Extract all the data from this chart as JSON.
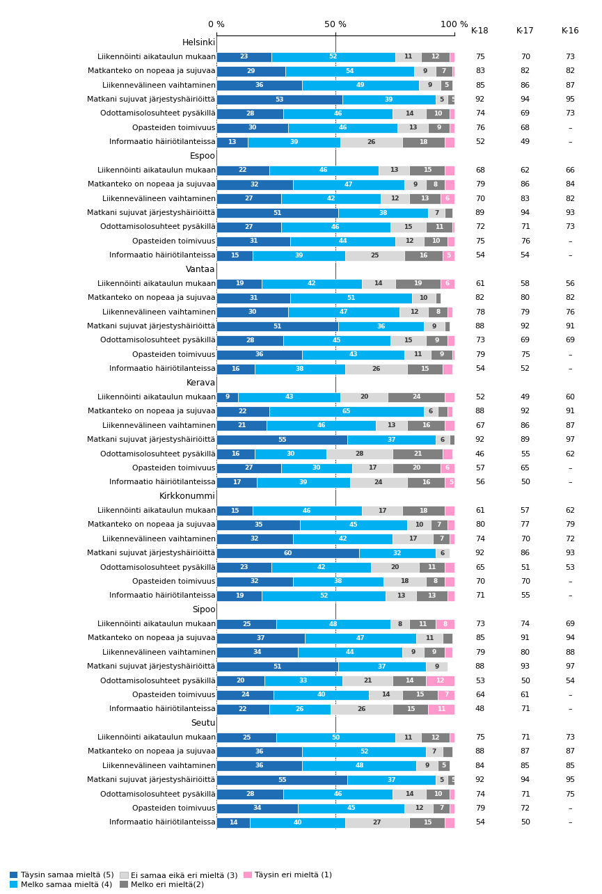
{
  "regions": [
    {
      "name": "Helsinki",
      "rows": [
        {
          "label": "Liikennöinti aikataulun mukaan",
          "v5": 23,
          "v4": 52,
          "v3": 11,
          "v2": 12,
          "v1": 3,
          "k18": 75,
          "k17": 70,
          "k16": 73
        },
        {
          "label": "Matkanteko on nopeaa ja sujuvaa",
          "v5": 29,
          "v4": 54,
          "v3": 9,
          "v2": 7,
          "v1": 2,
          "k18": 83,
          "k17": 82,
          "k16": 82
        },
        {
          "label": "Liikennevälineen vaihtaminen",
          "v5": 36,
          "v4": 49,
          "v3": 9,
          "v2": 5,
          "v1": 0,
          "k18": 85,
          "k17": 86,
          "k16": 87
        },
        {
          "label": "Matkani sujuvat järjestyshäiriöittä",
          "v5": 53,
          "v4": 39,
          "v3": 5,
          "v2": 5,
          "v1": 2,
          "k18": 92,
          "k17": 94,
          "k16": 95
        },
        {
          "label": "Odottamisolosuhteet pysäkillä",
          "v5": 28,
          "v4": 46,
          "v3": 14,
          "v2": 10,
          "v1": 2,
          "k18": 74,
          "k17": 69,
          "k16": 73
        },
        {
          "label": "Opasteiden toimivuus",
          "v5": 30,
          "v4": 46,
          "v3": 13,
          "v2": 9,
          "v1": 2,
          "k18": 76,
          "k17": 68,
          "k16": null
        },
        {
          "label": "Informaatio häiriötilanteissa",
          "v5": 13,
          "v4": 39,
          "v3": 26,
          "v2": 18,
          "v1": 4,
          "k18": 52,
          "k17": 49,
          "k16": null
        }
      ]
    },
    {
      "name": "Espoo",
      "rows": [
        {
          "label": "Liikennöinti aikataulun mukaan",
          "v5": 22,
          "v4": 46,
          "v3": 13,
          "v2": 15,
          "v1": 4,
          "k18": 68,
          "k17": 62,
          "k16": 66
        },
        {
          "label": "Matkanteko on nopeaa ja sujuvaa",
          "v5": 32,
          "v4": 47,
          "v3": 9,
          "v2": 8,
          "v1": 4,
          "k18": 79,
          "k17": 86,
          "k16": 84
        },
        {
          "label": "Liikennevälineen vaihtaminen",
          "v5": 27,
          "v4": 42,
          "v3": 12,
          "v2": 13,
          "v1": 6,
          "k18": 70,
          "k17": 83,
          "k16": 82
        },
        {
          "label": "Matkani sujuvat järjestyshäiriöittä",
          "v5": 51,
          "v4": 38,
          "v3": 7,
          "v2": 3,
          "v1": 0,
          "k18": 89,
          "k17": 94,
          "k16": 93
        },
        {
          "label": "Odottamisolosuhteet pysäkillä",
          "v5": 27,
          "v4": 46,
          "v3": 15,
          "v2": 11,
          "v1": 3,
          "k18": 72,
          "k17": 71,
          "k16": 73
        },
        {
          "label": "Opasteiden toimivuus",
          "v5": 31,
          "v4": 44,
          "v3": 12,
          "v2": 10,
          "v1": 3,
          "k18": 75,
          "k17": 76,
          "k16": null
        },
        {
          "label": "Informaatio häiriötilanteissa",
          "v5": 15,
          "v4": 39,
          "v3": 25,
          "v2": 16,
          "v1": 5,
          "k18": 54,
          "k17": 54,
          "k16": null
        }
      ]
    },
    {
      "name": "Vantaa",
      "rows": [
        {
          "label": "Liikennöinti aikataulun mukaan",
          "v5": 19,
          "v4": 42,
          "v3": 14,
          "v2": 19,
          "v1": 6,
          "k18": 61,
          "k17": 58,
          "k16": 56
        },
        {
          "label": "Matkanteko on nopeaa ja sujuvaa",
          "v5": 31,
          "v4": 51,
          "v3": 10,
          "v2": 2,
          "v1": 0,
          "k18": 82,
          "k17": 80,
          "k16": 82
        },
        {
          "label": "Liikennevälineen vaihtaminen",
          "v5": 30,
          "v4": 47,
          "v3": 12,
          "v2": 8,
          "v1": 2,
          "k18": 78,
          "k17": 79,
          "k16": 76
        },
        {
          "label": "Matkani sujuvat järjestyshäiriöittä",
          "v5": 51,
          "v4": 36,
          "v3": 9,
          "v2": 2,
          "v1": 0,
          "k18": 88,
          "k17": 92,
          "k16": 91
        },
        {
          "label": "Odottamisolosuhteet pysäkillä",
          "v5": 28,
          "v4": 45,
          "v3": 15,
          "v2": 9,
          "v1": 3,
          "k18": 73,
          "k17": 69,
          "k16": 69
        },
        {
          "label": "Opasteiden toimivuus",
          "v5": 36,
          "v4": 43,
          "v3": 11,
          "v2": 9,
          "v1": 2,
          "k18": 79,
          "k17": 75,
          "k16": null
        },
        {
          "label": "Informaatio häiriötilanteissa",
          "v5": 16,
          "v4": 38,
          "v3": 26,
          "v2": 15,
          "v1": 4,
          "k18": 54,
          "k17": 52,
          "k16": null
        }
      ]
    },
    {
      "name": "Kerava",
      "rows": [
        {
          "label": "Liikennöinti aikataulun mukaan",
          "v5": 9,
          "v4": 43,
          "v3": 20,
          "v2": 24,
          "v1": 4,
          "k18": 52,
          "k17": 49,
          "k16": 60
        },
        {
          "label": "Matkanteko on nopeaa ja sujuvaa",
          "v5": 22,
          "v4": 65,
          "v3": 6,
          "v2": 4,
          "v1": 2,
          "k18": 88,
          "k17": 92,
          "k16": 91
        },
        {
          "label": "Liikennevälineen vaihtaminen",
          "v5": 21,
          "v4": 46,
          "v3": 13,
          "v2": 16,
          "v1": 4,
          "k18": 67,
          "k17": 86,
          "k16": 87
        },
        {
          "label": "Matkani sujuvat järjestyshäiriöittä",
          "v5": 55,
          "v4": 37,
          "v3": 6,
          "v2": 3,
          "v1": 0,
          "k18": 92,
          "k17": 89,
          "k16": 97
        },
        {
          "label": "Odottamisolosuhteet pysäkillä",
          "v5": 16,
          "v4": 30,
          "v3": 28,
          "v2": 21,
          "v1": 4,
          "k18": 46,
          "k17": 55,
          "k16": 62
        },
        {
          "label": "Opasteiden toimivuus",
          "v5": 27,
          "v4": 30,
          "v3": 17,
          "v2": 20,
          "v1": 6,
          "k18": 57,
          "k17": 65,
          "k16": null
        },
        {
          "label": "Informaatio häiriötilanteissa",
          "v5": 17,
          "v4": 39,
          "v3": 24,
          "v2": 16,
          "v1": 5,
          "k18": 56,
          "k17": 50,
          "k16": null
        }
      ]
    },
    {
      "name": "Kirkkonummi",
      "rows": [
        {
          "label": "Liikennöinti aikataulun mukaan",
          "v5": 15,
          "v4": 46,
          "v3": 17,
          "v2": 18,
          "v1": 4,
          "k18": 61,
          "k17": 57,
          "k16": 62
        },
        {
          "label": "Matkanteko on nopeaa ja sujuvaa",
          "v5": 35,
          "v4": 45,
          "v3": 10,
          "v2": 7,
          "v1": 3,
          "k18": 80,
          "k17": 77,
          "k16": 79
        },
        {
          "label": "Liikennevälineen vaihtaminen",
          "v5": 32,
          "v4": 42,
          "v3": 17,
          "v2": 7,
          "v1": 2,
          "k18": 74,
          "k17": 70,
          "k16": 72
        },
        {
          "label": "Matkani sujuvat järjestyshäiriöittä",
          "v5": 60,
          "v4": 32,
          "v3": 6,
          "v2": 0,
          "v1": 0,
          "k18": 92,
          "k17": 86,
          "k16": 93
        },
        {
          "label": "Odottamisolosuhteet pysäkillä",
          "v5": 23,
          "v4": 42,
          "v3": 20,
          "v2": 11,
          "v1": 4,
          "k18": 65,
          "k17": 51,
          "k16": 53
        },
        {
          "label": "Opasteiden toimivuus",
          "v5": 32,
          "v4": 38,
          "v3": 18,
          "v2": 8,
          "v1": 4,
          "k18": 70,
          "k17": 70,
          "k16": null
        },
        {
          "label": "Informaatio häiriötilanteissa",
          "v5": 19,
          "v4": 52,
          "v3": 13,
          "v2": 13,
          "v1": 4,
          "k18": 71,
          "k17": 55,
          "k16": null
        }
      ]
    },
    {
      "name": "Sipoo",
      "rows": [
        {
          "label": "Liikennöinti aikataulun mukaan",
          "v5": 25,
          "v4": 48,
          "v3": 8,
          "v2": 11,
          "v1": 8,
          "k18": 73,
          "k17": 74,
          "k16": 69
        },
        {
          "label": "Matkanteko on nopeaa ja sujuvaa",
          "v5": 37,
          "v4": 47,
          "v3": 11,
          "v2": 4,
          "v1": 0,
          "k18": 85,
          "k17": 91,
          "k16": 94
        },
        {
          "label": "Liikennevälineen vaihtaminen",
          "v5": 34,
          "v4": 44,
          "v3": 9,
          "v2": 9,
          "v1": 3,
          "k18": 79,
          "k17": 80,
          "k16": 88
        },
        {
          "label": "Matkani sujuvat järjestyshäiriöittä",
          "v5": 51,
          "v4": 37,
          "v3": 9,
          "v2": 0,
          "v1": 0,
          "k18": 88,
          "k17": 93,
          "k16": 97
        },
        {
          "label": "Odottamisolosuhteet pysäkillä",
          "v5": 20,
          "v4": 33,
          "v3": 21,
          "v2": 14,
          "v1": 12,
          "k18": 53,
          "k17": 50,
          "k16": 54
        },
        {
          "label": "Opasteiden toimivuus",
          "v5": 24,
          "v4": 40,
          "v3": 14,
          "v2": 15,
          "v1": 7,
          "k18": 64,
          "k17": 61,
          "k16": null
        },
        {
          "label": "Informaatio häiriötilanteissa",
          "v5": 22,
          "v4": 26,
          "v3": 26,
          "v2": 15,
          "v1": 11,
          "k18": 48,
          "k17": 71,
          "k16": null
        }
      ]
    },
    {
      "name": "Seutu",
      "rows": [
        {
          "label": "Liikennöinti aikataulun mukaan",
          "v5": 25,
          "v4": 50,
          "v3": 11,
          "v2": 12,
          "v1": 2,
          "k18": 75,
          "k17": 71,
          "k16": 73
        },
        {
          "label": "Matkanteko on nopeaa ja sujuvaa",
          "v5": 36,
          "v4": 52,
          "v3": 7,
          "v2": 4,
          "v1": 0,
          "k18": 88,
          "k17": 87,
          "k16": 87
        },
        {
          "label": "Liikennevälineen vaihtaminen",
          "v5": 36,
          "v4": 48,
          "v3": 9,
          "v2": 5,
          "v1": 0,
          "k18": 84,
          "k17": 85,
          "k16": 85
        },
        {
          "label": "Matkani sujuvat järjestyshäiriöittä",
          "v5": 55,
          "v4": 37,
          "v3": 5,
          "v2": 5,
          "v1": 2,
          "k18": 92,
          "k17": 94,
          "k16": 95
        },
        {
          "label": "Odottamisolosuhteet pysäkillä",
          "v5": 28,
          "v4": 46,
          "v3": 14,
          "v2": 10,
          "v1": 2,
          "k18": 74,
          "k17": 71,
          "k16": 75
        },
        {
          "label": "Opasteiden toimivuus",
          "v5": 34,
          "v4": 45,
          "v3": 12,
          "v2": 7,
          "v1": 2,
          "k18": 79,
          "k17": 72,
          "k16": null
        },
        {
          "label": "Informaatio häiriötilanteissa",
          "v5": 14,
          "v4": 40,
          "v3": 27,
          "v2": 15,
          "v1": 4,
          "k18": 54,
          "k17": 50,
          "k16": null
        }
      ]
    }
  ],
  "colors": {
    "v5": "#1f6eb5",
    "v4": "#00b0f0",
    "v3": "#d9d9d9",
    "v2": "#808080",
    "v1": "#ff99cc"
  },
  "legend_labels": {
    "v5": "Täysin samaa mieltä (5)",
    "v4": "Melko samaa mieltä (4)",
    "v3": "Ei samaa eikä eri mieltä (3)",
    "v2": "Melko eri mieltä(2)",
    "v1": "Täysin eri mieltä (1)"
  },
  "col_headers": [
    "K-18",
    "K-17",
    "K-16"
  ]
}
